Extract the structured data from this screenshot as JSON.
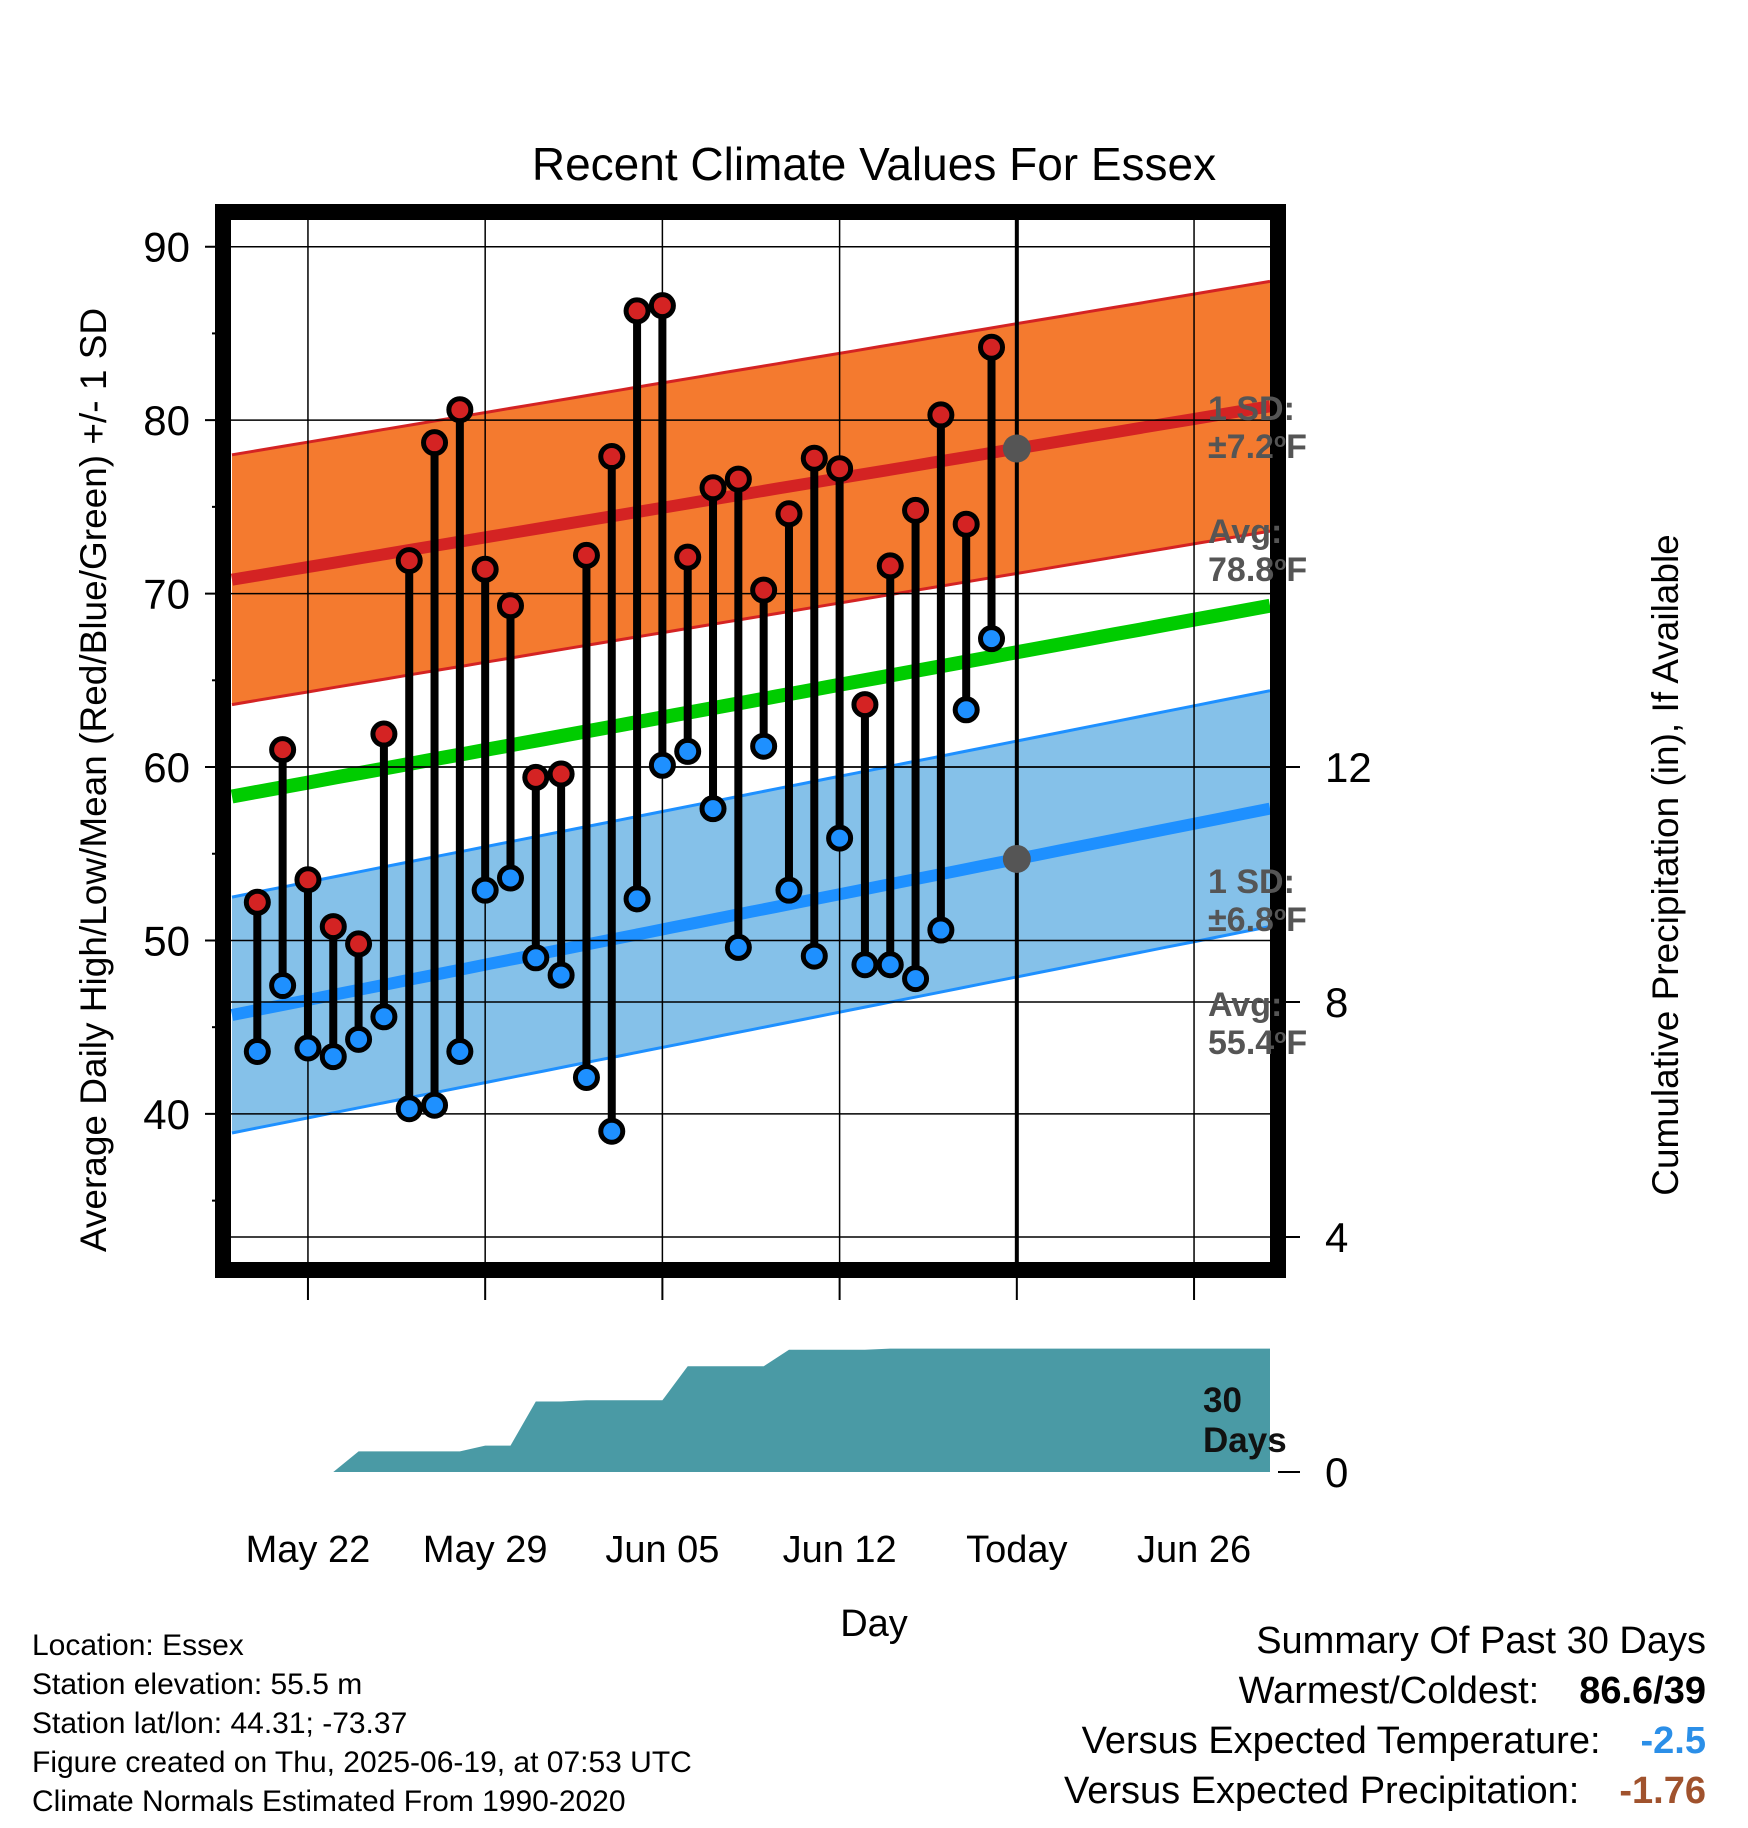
{
  "chart_data": {
    "type": "line",
    "title": "Recent Climate Values For Essex",
    "xlabel": "Day",
    "ylabel": "Average Daily High/Low/Mean (Red/Blue/Green) +/- 1 SD",
    "y2label": "Cumulative Precipitation (in), If Available",
    "x_ticks": [
      "May 22",
      "May 29",
      "Jun 05",
      "Jun 12",
      "Today",
      "Jun 26"
    ],
    "y_ticks": [
      40,
      50,
      60,
      70,
      80,
      90
    ],
    "y2_ticks": [
      0,
      4,
      8,
      12
    ],
    "ylim": [
      31,
      92
    ],
    "y2lim": [
      0,
      12
    ],
    "x_start": "2025-05-19",
    "x_end": "2025-06-29",
    "today": "2025-06-19",
    "grid": true,
    "colors": {
      "high": "#d42323",
      "high_band": "#f47a2f",
      "low": "#1e90ff",
      "low_band": "#85c1e9",
      "mean": "#00cc00",
      "precip": "#4a9aa5",
      "annotation": "#555555",
      "vs_temp": "#2b8fe8",
      "vs_precip": "#a0522d"
    },
    "normal_high": {
      "start": 70.8,
      "end": 80.8,
      "sd": 7.2
    },
    "normal_low": {
      "start": 45.7,
      "end": 57.6,
      "sd": 6.8
    },
    "normal_mean": {
      "start": 58.3,
      "end": 69.3
    },
    "daily": {
      "dates": [
        "2025-05-20",
        "2025-05-21",
        "2025-05-22",
        "2025-05-23",
        "2025-05-24",
        "2025-05-25",
        "2025-05-26",
        "2025-05-27",
        "2025-05-28",
        "2025-05-29",
        "2025-05-30",
        "2025-05-31",
        "2025-06-01",
        "2025-06-02",
        "2025-06-03",
        "2025-06-04",
        "2025-06-05",
        "2025-06-06",
        "2025-06-07",
        "2025-06-08",
        "2025-06-09",
        "2025-06-10",
        "2025-06-11",
        "2025-06-12",
        "2025-06-13",
        "2025-06-14",
        "2025-06-15",
        "2025-06-16",
        "2025-06-17",
        "2025-06-18"
      ],
      "highs": [
        52.2,
        61.0,
        53.5,
        50.8,
        49.8,
        61.9,
        71.9,
        78.7,
        80.6,
        71.4,
        69.3,
        59.4,
        59.6,
        72.2,
        77.9,
        86.3,
        86.6,
        72.1,
        76.1,
        76.6,
        70.2,
        74.6,
        77.8,
        77.2,
        63.6,
        71.6,
        74.8,
        80.3,
        74.0,
        84.2
      ],
      "lows": [
        43.6,
        47.4,
        43.8,
        43.3,
        44.3,
        45.6,
        40.3,
        40.5,
        43.6,
        52.9,
        53.6,
        49.0,
        48.0,
        42.1,
        39.0,
        52.4,
        60.1,
        60.9,
        57.6,
        49.6,
        61.2,
        52.9,
        49.1,
        55.9,
        48.6,
        48.6,
        47.8,
        50.6,
        63.3,
        67.4
      ]
    },
    "precip_cumulative": {
      "dates": [
        "2025-05-19",
        "2025-05-23",
        "2025-05-24",
        "2025-05-25",
        "2025-05-26",
        "2025-05-27",
        "2025-05-28",
        "2025-05-29",
        "2025-05-30",
        "2025-05-31",
        "2025-06-01",
        "2025-06-02",
        "2025-06-03",
        "2025-06-04",
        "2025-06-05",
        "2025-06-06",
        "2025-06-07",
        "2025-06-08",
        "2025-06-09",
        "2025-06-10",
        "2025-06-11",
        "2025-06-12",
        "2025-06-13",
        "2025-06-14",
        "2025-06-15",
        "2025-06-16",
        "2025-06-17",
        "2025-06-18",
        "2025-06-29"
      ],
      "values": [
        0,
        0,
        0.35,
        0.35,
        0.35,
        0.35,
        0.35,
        0.45,
        0.45,
        1.2,
        1.2,
        1.22,
        1.22,
        1.22,
        1.22,
        1.8,
        1.8,
        1.8,
        1.8,
        2.08,
        2.08,
        2.08,
        2.08,
        2.1,
        2.1,
        2.1,
        2.1,
        2.1,
        2.1
      ]
    },
    "annotations": {
      "high_sd_label": "1 SD:",
      "high_sd_value": "±7.2",
      "high_avg_label": "Avg:",
      "high_avg_value": "78.8",
      "low_sd_label": "1 SD:",
      "low_sd_value": "±6.8",
      "low_avg_label": "Avg:",
      "low_avg_value": "55.4",
      "degree_sup": "o",
      "unit": "F",
      "precip_line1": "30",
      "precip_line2": "Days"
    }
  },
  "info": {
    "location": "Location: Essex",
    "elevation": "Station elevation: 55.5 m",
    "latlon": "Station lat/lon: 44.31; -73.37",
    "created": "Figure created on Thu, 2025-06-19, at 07:53 UTC",
    "normals": "Climate Normals Estimated From 1990-2020"
  },
  "summary": {
    "title": "Summary Of Past 30 Days",
    "warmest_label": "Warmest/Coldest:",
    "warmest_value": "86.6/39",
    "vs_temp_label": "Versus Expected Temperature:",
    "vs_temp_value": "-2.5",
    "vs_precip_label": "Versus Expected Precipitation:",
    "vs_precip_value": "-1.76"
  }
}
